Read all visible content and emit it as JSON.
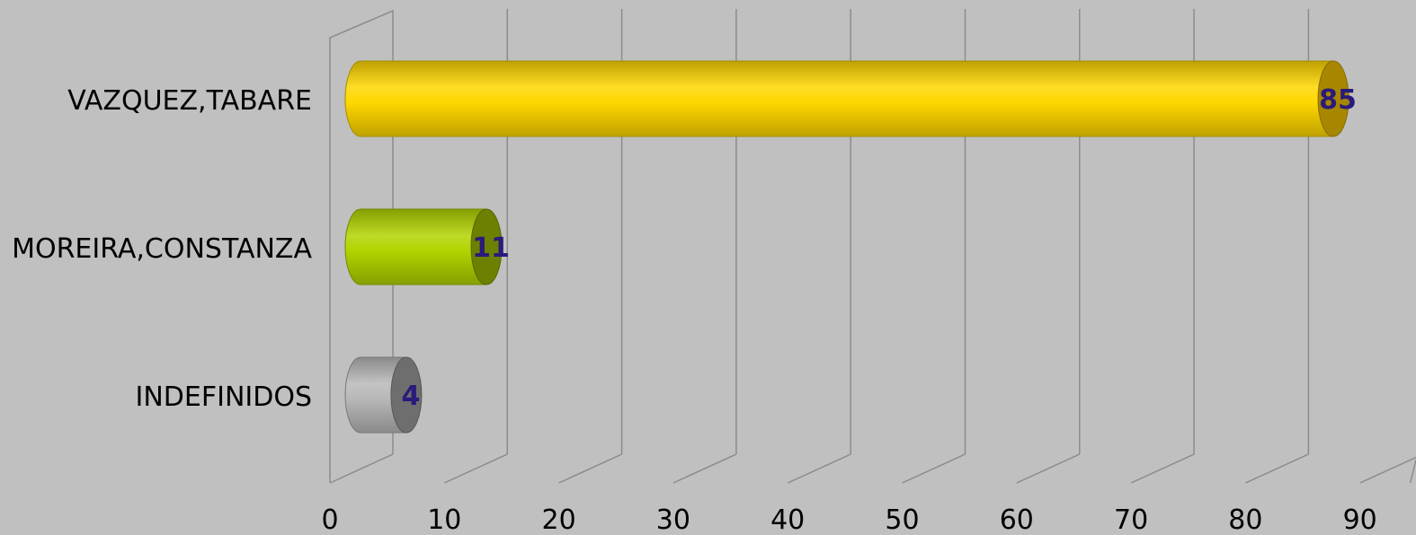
{
  "chart_data": {
    "type": "bar",
    "orientation": "horizontal",
    "style": "3d-cylinder",
    "categories": [
      "VAZQUEZ,TABARE",
      "MOREIRA,CONSTANZA",
      "INDEFINIDOS"
    ],
    "values": [
      85,
      11,
      4
    ],
    "data_labels": [
      "85",
      "11",
      "4"
    ],
    "colors": [
      "#ffd700",
      "#b2d400",
      "#b8b8b8"
    ],
    "end_colors": [
      "#a88700",
      "#6e8000",
      "#6e6e6e"
    ],
    "xlim": [
      0,
      90
    ],
    "xticks": [
      0,
      10,
      20,
      30,
      40,
      50,
      60,
      70,
      80,
      90
    ],
    "xtick_labels": [
      "0",
      "10",
      "20",
      "30",
      "40",
      "50",
      "60",
      "70",
      "80",
      "90"
    ],
    "grid": true,
    "legend": "none",
    "title": "",
    "xlabel": "",
    "ylabel": "",
    "background": "#c0c0c0",
    "label_color": "#2a1a7a"
  }
}
